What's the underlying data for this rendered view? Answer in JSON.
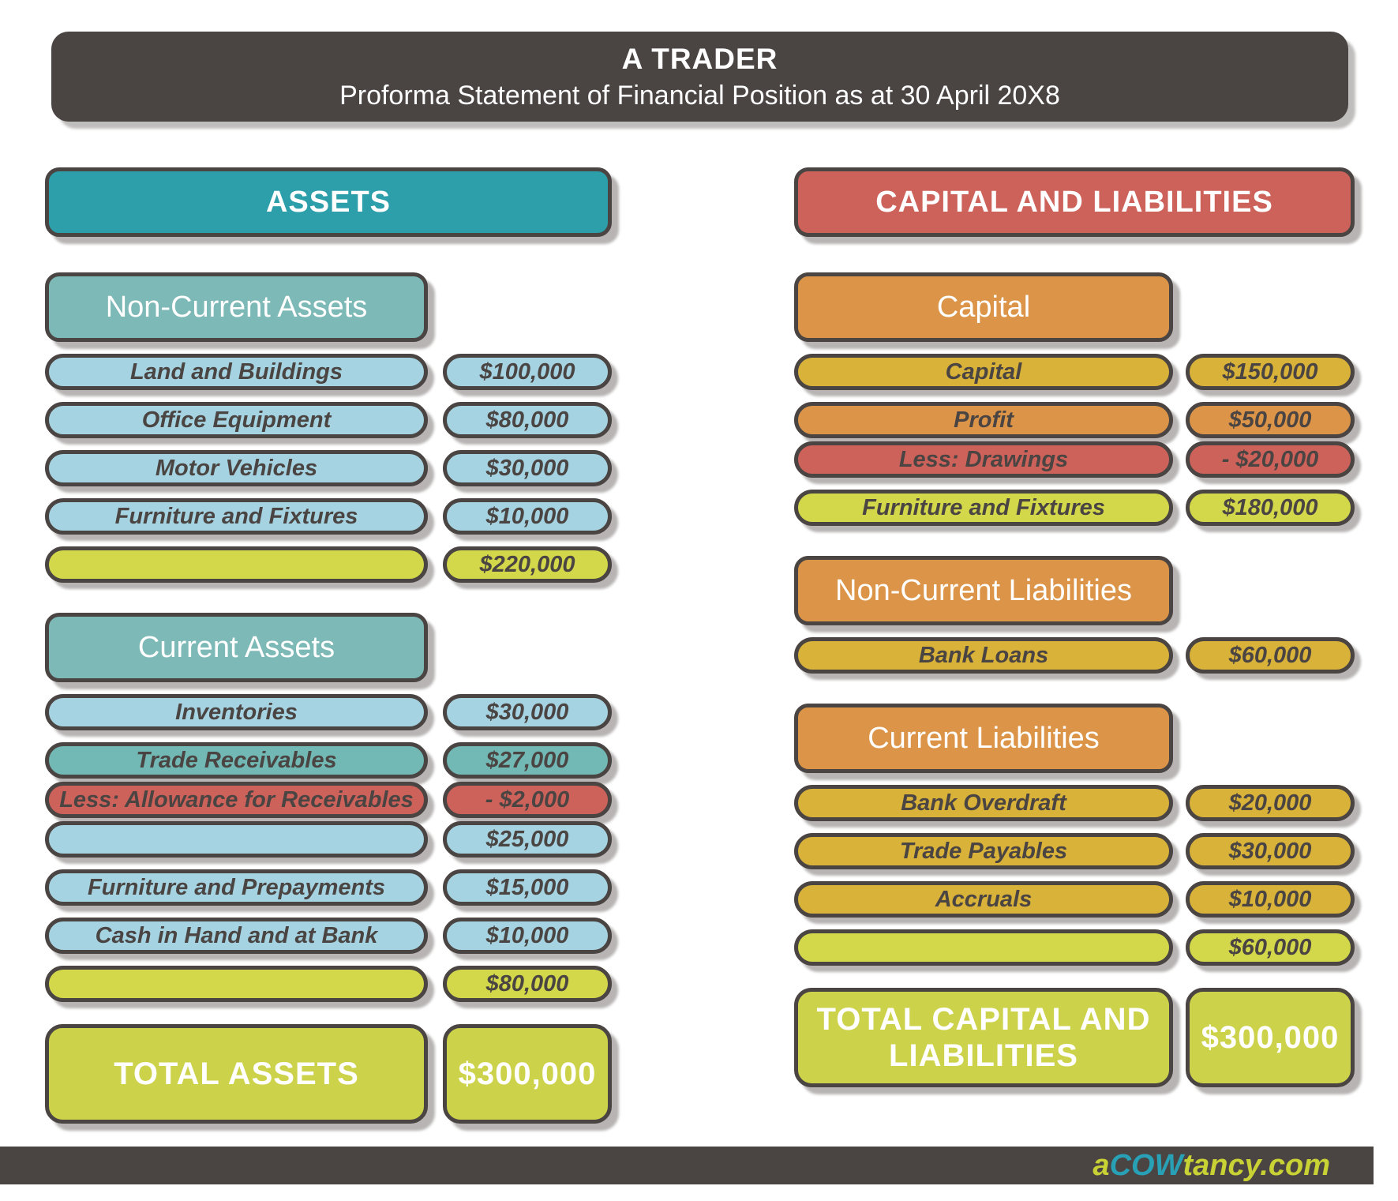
{
  "palette": {
    "dark": "#4a4442",
    "teal": "#2d9faa",
    "tealLight": "#7db9b6",
    "tealMid": "#72b8b4",
    "blue": "#a5d3e1",
    "red": "#cd625b",
    "orange": "#dc9548",
    "gold": "#d9b23a",
    "green": "#d3d84b",
    "totalGreen": "#cdd24b",
    "logoTeal": "#28a0b5",
    "logoGreen": "#c9d234"
  },
  "header": {
    "title": "A TRADER",
    "subtitle": "Proforma Statement of Financial Position as at 30 April 20X8"
  },
  "assets": {
    "header": "ASSETS",
    "header_color": "teal",
    "sections": [
      {
        "title": "Non-Current Assets",
        "header_color": "tealLight",
        "rows": [
          {
            "label": "Land and Buildings",
            "value": "$100,000",
            "color": "blue"
          },
          {
            "label": "Office Equipment",
            "value": "$80,000",
            "color": "blue"
          },
          {
            "label": "Motor Vehicles",
            "value": "$30,000",
            "color": "blue"
          },
          {
            "label": "Furniture and Fixtures",
            "value": "$10,000",
            "color": "blue"
          },
          {
            "label": "",
            "value": "$220,000",
            "color": "green"
          }
        ]
      },
      {
        "title": "Current Assets",
        "header_color": "tealLight",
        "rows": [
          {
            "label": "Inventories",
            "value": "$30,000",
            "color": "blue"
          },
          {
            "label": "Trade Receivables",
            "value": "$27,000",
            "color": "tealMid"
          },
          {
            "label": "Less: Allowance for Receivables",
            "value": "- $2,000",
            "color": "red",
            "tight": true
          },
          {
            "label": "",
            "value": "$25,000",
            "color": "blue",
            "tight": true
          },
          {
            "label": "Furniture and Prepayments",
            "value": "$15,000",
            "color": "blue"
          },
          {
            "label": "Cash in Hand and at Bank",
            "value": "$10,000",
            "color": "blue"
          },
          {
            "label": "",
            "value": "$80,000",
            "color": "green"
          }
        ]
      }
    ],
    "total": {
      "label": "TOTAL ASSETS",
      "value": "$300,000"
    }
  },
  "capital_liabilities": {
    "header": "CAPITAL AND LIABILITIES",
    "header_color": "red",
    "sections": [
      {
        "title": "Capital",
        "header_color": "orange",
        "rows": [
          {
            "label": "Capital",
            "value": "$150,000",
            "color": "gold"
          },
          {
            "label": "Profit",
            "value": "$50,000",
            "color": "orange"
          },
          {
            "label": "Less: Drawings",
            "value": "- $20,000",
            "color": "red",
            "tight": true
          },
          {
            "label": "Furniture and Fixtures",
            "value": "$180,000",
            "color": "green"
          }
        ]
      },
      {
        "title": "Non-Current Liabilities",
        "header_color": "orange",
        "rows": [
          {
            "label": "Bank Loans",
            "value": "$60,000",
            "color": "gold"
          }
        ]
      },
      {
        "title": "Current Liabilities",
        "header_color": "orange",
        "rows": [
          {
            "label": "Bank Overdraft",
            "value": "$20,000",
            "color": "gold"
          },
          {
            "label": "Trade Payables",
            "value": "$30,000",
            "color": "gold"
          },
          {
            "label": "Accruals",
            "value": "$10,000",
            "color": "gold"
          },
          {
            "label": "",
            "value": "$60,000",
            "color": "green"
          }
        ]
      }
    ],
    "total": {
      "label": "TOTAL CAPITAL AND LIABILITIES",
      "value": "$300,000"
    }
  },
  "footer": {
    "logo": {
      "prefix": "a",
      "brand": "COW",
      "suffix": "tancy.com"
    }
  }
}
